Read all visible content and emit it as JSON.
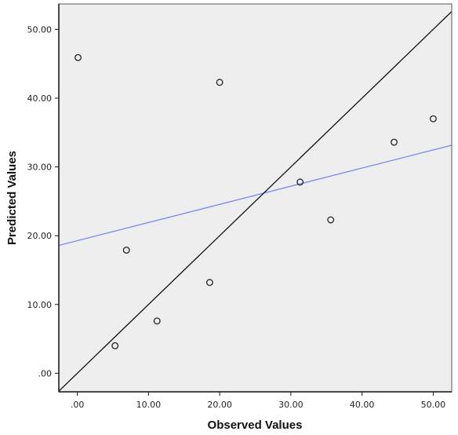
{
  "chart_data": {
    "type": "scatter",
    "title": "",
    "xlabel": "Observed Values",
    "ylabel": "Predicted Values",
    "xlim": [
      -2.6,
      52.6
    ],
    "ylim": [
      -2.7,
      53.7
    ],
    "xticks": [
      0,
      10,
      20,
      30,
      40,
      50
    ],
    "xtick_labels": [
      ".00",
      "10.00",
      "20.00",
      "30.00",
      "40.00",
      "50.00"
    ],
    "yticks": [
      0,
      10,
      20,
      30,
      40,
      50
    ],
    "ytick_labels": [
      ".00",
      "10.00",
      "20.00",
      "30.00",
      "40.00",
      "50.00"
    ],
    "grid": false,
    "points": [
      {
        "x": 0.1,
        "y": 45.9
      },
      {
        "x": 20.0,
        "y": 42.3
      },
      {
        "x": 6.9,
        "y": 17.9
      },
      {
        "x": 5.3,
        "y": 4.0
      },
      {
        "x": 11.2,
        "y": 7.6
      },
      {
        "x": 18.6,
        "y": 13.2
      },
      {
        "x": 31.3,
        "y": 27.8
      },
      {
        "x": 35.6,
        "y": 22.3
      },
      {
        "x": 44.5,
        "y": 33.6
      },
      {
        "x": 50.0,
        "y": 37.0
      }
    ],
    "reference_line": {
      "slope": 1,
      "intercept": 0
    },
    "fit_line": {
      "slope": 0.2638,
      "intercept": 19.28
    },
    "colors": {
      "plot_background": "#eeeeee",
      "marker_edge": "#222222",
      "reference_line": "#111111",
      "fit_line": "#7b86e8"
    }
  }
}
